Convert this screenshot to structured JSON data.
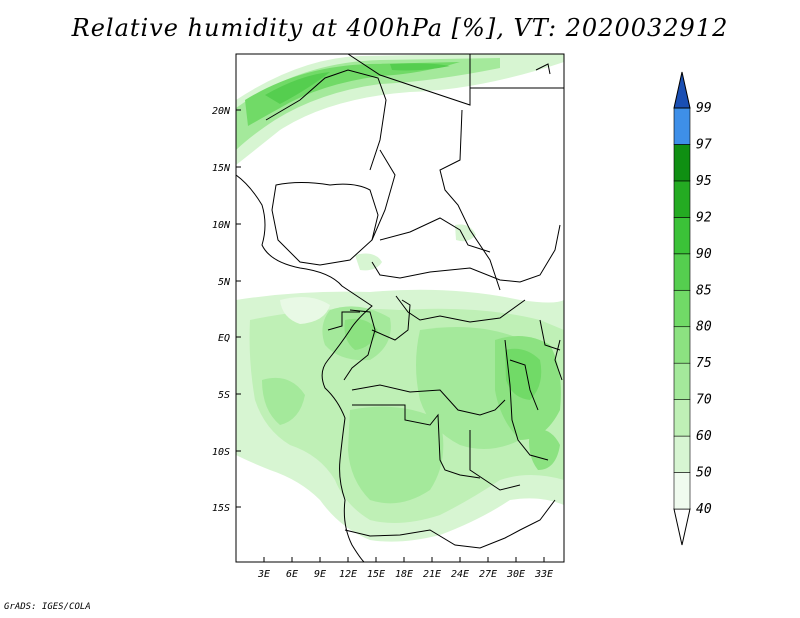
{
  "title": "Relative humidity at 400hPa [%], VT: 2020032912",
  "credit": "GrADS: IGES/COLA",
  "map": {
    "lat_labels": [
      "20N",
      "15N",
      "10N",
      "5N",
      "EQ",
      "5S",
      "10S",
      "15S"
    ],
    "lon_labels": [
      "3E",
      "6E",
      "9E",
      "12E",
      "15E",
      "18E",
      "21E",
      "24E",
      "27E",
      "30E",
      "33E"
    ]
  },
  "colorbar": {
    "levels": [
      "40",
      "50",
      "60",
      "70",
      "75",
      "80",
      "85",
      "90",
      "92",
      "95",
      "97",
      "99"
    ],
    "colors": [
      "#f0fbef",
      "#d7f5d2",
      "#bff0b6",
      "#a4e99b",
      "#8ce281",
      "#71da67",
      "#55ce4f",
      "#3bc238",
      "#24ab22",
      "#0f8f12",
      "#3e8fe8",
      "#2266d4",
      "#1a4fb3"
    ]
  }
}
